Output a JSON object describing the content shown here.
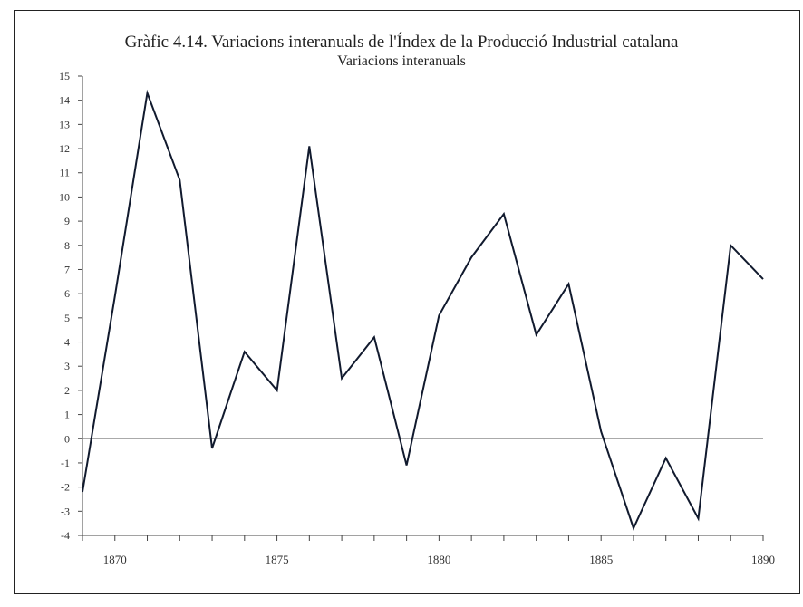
{
  "chart_data": {
    "type": "line",
    "title": "Gràfic 4.14. Variacions interanuals de l'Índex de la Producció Industrial catalana",
    "subtitle": "Variacions interanuals",
    "xlabel": "",
    "ylabel": "",
    "xlim": [
      1869,
      1890
    ],
    "ylim": [
      -4,
      15
    ],
    "x_ticks": [
      1870,
      1875,
      1880,
      1885,
      1890
    ],
    "y_ticks": [
      -4,
      -3,
      -2,
      -1,
      0,
      1,
      2,
      3,
      4,
      5,
      6,
      7,
      8,
      9,
      10,
      11,
      12,
      13,
      14,
      15
    ],
    "grid": false,
    "zero_line": true,
    "series": [
      {
        "x": [
          1869,
          1870,
          1871,
          1872,
          1873,
          1874,
          1875,
          1876,
          1877,
          1878,
          1879,
          1880,
          1881,
          1882,
          1883,
          1884,
          1885,
          1886,
          1887,
          1888,
          1889,
          1890
        ],
        "values": [
          -2.2,
          5.9,
          14.3,
          10.7,
          -0.4,
          3.6,
          2.0,
          12.1,
          2.5,
          4.2,
          -1.1,
          5.1,
          7.5,
          9.3,
          4.3,
          6.4,
          0.3,
          -3.7,
          -0.8,
          -3.3,
          8.0,
          6.6
        ],
        "color": "#111a2e"
      }
    ]
  }
}
